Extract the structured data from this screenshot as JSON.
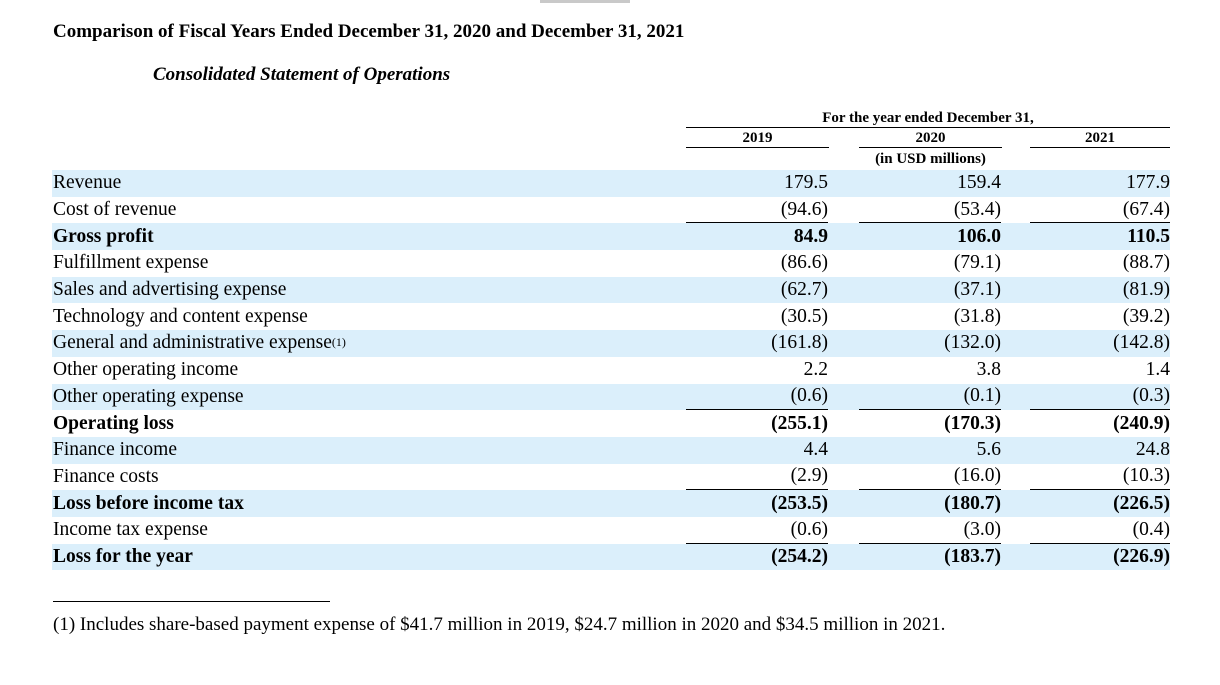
{
  "title": "Comparison of Fiscal Years Ended December 31, 2020 and December 31, 2021",
  "subtitle": "Consolidated Statement of Operations",
  "header": {
    "group_label": "For the year ended December 31,",
    "years": [
      "2019",
      "2020",
      "2021"
    ],
    "unit_note": "(in USD millions)"
  },
  "rows": [
    {
      "label": "Revenue",
      "sup": "",
      "bold": false,
      "values": [
        "179.5",
        "159.4",
        "177.9"
      ]
    },
    {
      "label": "Cost of revenue",
      "sup": "",
      "bold": false,
      "values": [
        "(94.6)",
        "(53.4)",
        "(67.4)"
      ]
    },
    {
      "label": "Gross profit",
      "sup": "",
      "bold": true,
      "values": [
        "84.9",
        "106.0",
        "110.5"
      ]
    },
    {
      "label": "Fulfillment expense",
      "sup": "",
      "bold": false,
      "values": [
        "(86.6)",
        "(79.1)",
        "(88.7)"
      ]
    },
    {
      "label": "Sales and advertising expense",
      "sup": "",
      "bold": false,
      "values": [
        "(62.7)",
        "(37.1)",
        "(81.9)"
      ]
    },
    {
      "label": "Technology and content expense",
      "sup": "",
      "bold": false,
      "values": [
        "(30.5)",
        "(31.8)",
        "(39.2)"
      ]
    },
    {
      "label": "General and administrative expense",
      "sup": "(1)",
      "bold": false,
      "values": [
        "(161.8)",
        "(132.0)",
        "(142.8)"
      ]
    },
    {
      "label": "Other operating income",
      "sup": "",
      "bold": false,
      "values": [
        "2.2",
        "3.8",
        "1.4"
      ]
    },
    {
      "label": "Other operating expense",
      "sup": "",
      "bold": false,
      "values": [
        "(0.6)",
        "(0.1)",
        "(0.3)"
      ]
    },
    {
      "label": "Operating loss",
      "sup": "",
      "bold": true,
      "values": [
        "(255.1)",
        "(170.3)",
        "(240.9)"
      ]
    },
    {
      "label": "Finance income",
      "sup": "",
      "bold": false,
      "values": [
        "4.4",
        "5.6",
        "24.8"
      ]
    },
    {
      "label": "Finance costs",
      "sup": "",
      "bold": false,
      "values": [
        "(2.9)",
        "(16.0)",
        "(10.3)"
      ]
    },
    {
      "label": "Loss before income tax",
      "sup": "",
      "bold": true,
      "values": [
        "(253.5)",
        "(180.7)",
        "(226.5)"
      ]
    },
    {
      "label": "Income tax expense",
      "sup": "",
      "bold": false,
      "values": [
        "(0.6)",
        "(3.0)",
        "(0.4)"
      ]
    },
    {
      "label": "Loss for the year",
      "sup": "",
      "bold": true,
      "values": [
        "(254.2)",
        "(183.7)",
        "(226.9)"
      ]
    }
  ],
  "footnote": "(1)  Includes share-based payment expense of $41.7 million in 2019, $24.7 million in 2020 and $34.5 million in 2021."
}
